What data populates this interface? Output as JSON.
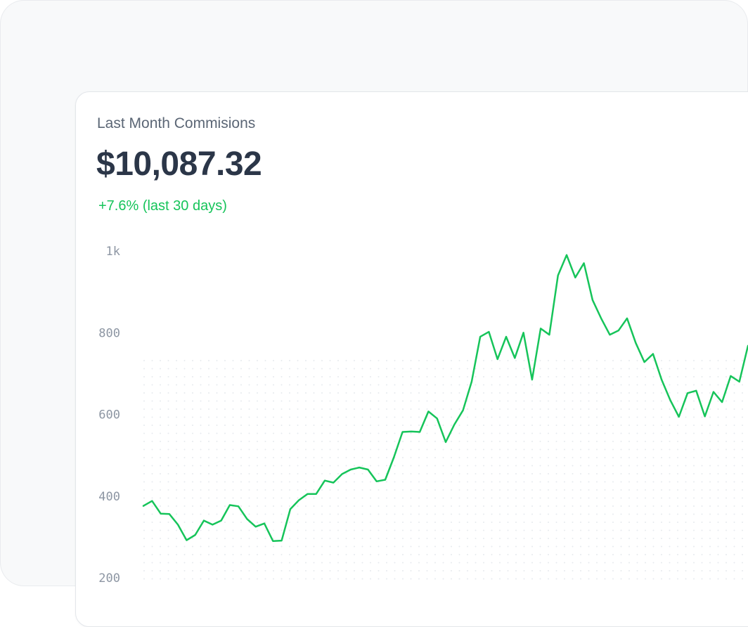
{
  "card": {
    "title": "Last Month Commisions",
    "amount": "$10,087.32",
    "change": "+7.6% (last 30 days)"
  },
  "colors": {
    "line": "#16c45a",
    "positive": "#16c45a",
    "amount_text": "#2b3648",
    "title_text": "#5b6675",
    "tick_text": "#8d96a3",
    "grid_dots": "#e7eaee"
  },
  "chart_data": {
    "type": "line",
    "title": "",
    "xlabel": "",
    "ylabel": "",
    "ylim": [
      200,
      1000
    ],
    "y_ticks": [
      1000,
      800,
      600,
      400,
      200
    ],
    "y_tick_labels": [
      "1k",
      "800",
      "600",
      "400",
      "200"
    ],
    "grid": "dotted background",
    "legend": "none",
    "series": [
      {
        "values": [
          376,
          388,
          357,
          356,
          330,
          292,
          305,
          340,
          330,
          340,
          378,
          375,
          344,
          325,
          333,
          290,
          291,
          368,
          390,
          405,
          405,
          438,
          433,
          454,
          465,
          470,
          465,
          436,
          440,
          495,
          557,
          558,
          557,
          607,
          590,
          532,
          575,
          610,
          680,
          790,
          802,
          735,
          790,
          738,
          800,
          685,
          810,
          795,
          940,
          990,
          935,
          970,
          880,
          835,
          795,
          805,
          835,
          775,
          728,
          748,
          685,
          635,
          594,
          652,
          658,
          595,
          655,
          630,
          694,
          680,
          768
        ]
      }
    ]
  }
}
